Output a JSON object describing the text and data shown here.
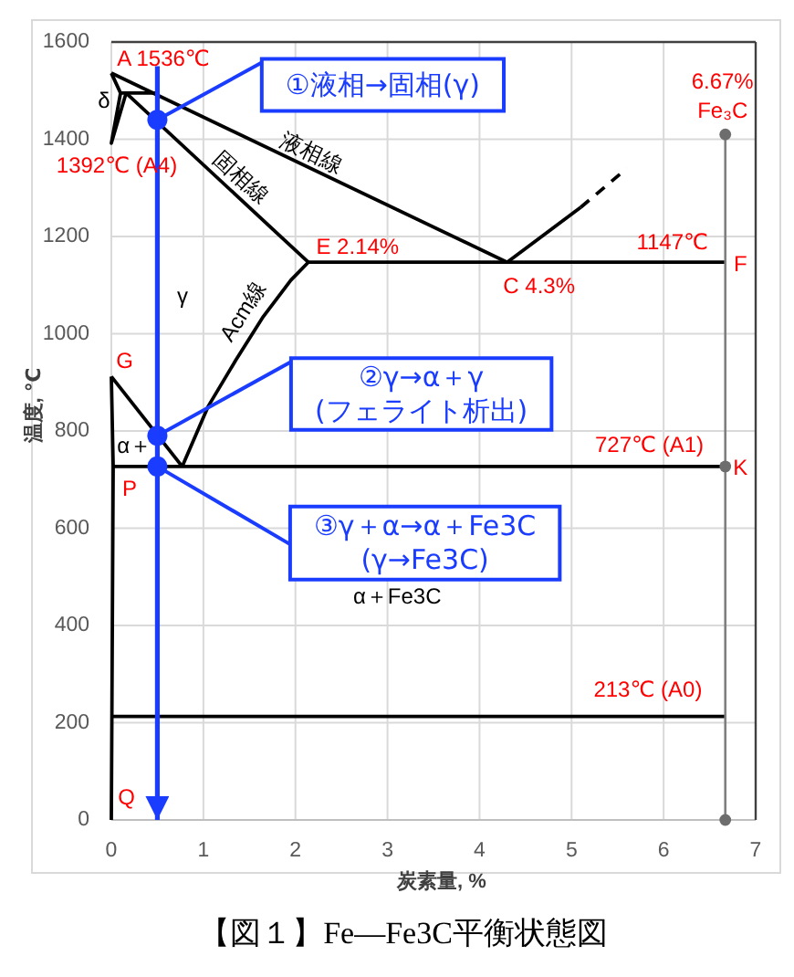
{
  "chart_data": {
    "type": "line",
    "title": "【図１】Fe—Fe3C平衡状態図",
    "xlabel": "炭素量, %",
    "ylabel": "温度, ℃",
    "xlim": [
      0,
      7
    ],
    "ylim": [
      0,
      1600
    ],
    "xticks": [
      0,
      1,
      2,
      3,
      4,
      5,
      6,
      7
    ],
    "yticks": [
      0,
      200,
      400,
      600,
      800,
      1000,
      1200,
      1400,
      1600
    ],
    "grid": true,
    "series": [
      {
        "name": "液相線",
        "color": "#000000",
        "x": [
          0,
          4.3
        ],
        "values": [
          1536,
          1147
        ]
      },
      {
        "name": "固相線",
        "color": "#000000",
        "x": [
          0.16,
          2.14
        ],
        "values": [
          1495,
          1147
        ]
      },
      {
        "color": "#000000",
        "x": [
          0,
          0.1,
          0,
          0.16
        ],
        "values": [
          1536,
          1495,
          1392,
          1495
        ]
      },
      {
        "color": "#000000",
        "x": [
          0.1,
          0.5
        ],
        "values": [
          1495,
          1495
        ]
      },
      {
        "color": "#000000",
        "x": [
          2.14,
          6.67
        ],
        "values": [
          1147,
          1147
        ]
      },
      {
        "color": "#000000",
        "x": [
          4.3,
          5.1
        ],
        "values": [
          1147,
          1260
        ]
      },
      {
        "color": "#000000",
        "x": [
          5.1,
          5.6
        ],
        "values": [
          1260,
          1340
        ],
        "line_style": "dashed"
      },
      {
        "name": "Acm線",
        "color": "#000000",
        "x": [
          0.77,
          1.05,
          1.35,
          1.65,
          1.95,
          2.14
        ],
        "values": [
          727,
          850,
          945,
          1035,
          1110,
          1147
        ]
      },
      {
        "color": "#000000",
        "x": [
          0,
          0.77
        ],
        "values": [
          912,
          727
        ]
      },
      {
        "color": "#000000",
        "x": [
          0,
          0.02,
          0
        ],
        "values": [
          912,
          727,
          0
        ]
      },
      {
        "color": "#000000",
        "x": [
          0.02,
          6.67
        ],
        "values": [
          727,
          727
        ]
      },
      {
        "color": "#000000",
        "x": [
          0,
          6.67
        ],
        "values": [
          213,
          213
        ]
      },
      {
        "color": "#7f7f7f",
        "x": [
          6.67,
          6.67,
          6.67
        ],
        "values": [
          1410,
          727,
          0
        ],
        "marker": "circle"
      },
      {
        "color": "#1a3cff",
        "x": [
          0.5,
          0.5
        ],
        "values": [
          1550,
          0
        ]
      },
      {
        "type": "scatter",
        "color": "#1a3cff",
        "x": [
          0.5,
          0.5,
          0.5
        ],
        "values": [
          1440,
          790,
          727
        ],
        "marker": "circle"
      }
    ],
    "annotations": [
      {
        "text": "A 1536℃",
        "x": 0,
        "y": 1536
      },
      {
        "text": "1392℃ (A4)",
        "x": 0,
        "y": 1392
      },
      {
        "text": "δ",
        "x": 0.05,
        "y": 1470
      },
      {
        "text": "E 2.14%",
        "x": 2.14,
        "y": 1147
      },
      {
        "text": "C 4.3%",
        "x": 4.3,
        "y": 1147
      },
      {
        "text": "1147℃",
        "x": 6.67,
        "y": 1147
      },
      {
        "text": "F",
        "x": 6.67,
        "y": 1147
      },
      {
        "text": "6.67%\nFe₃C",
        "x": 6.67,
        "y": 1410
      },
      "γ",
      {
        "text": "G",
        "x": 0,
        "y": 912
      },
      "α＋",
      {
        "text": "P",
        "x": 0.02,
        "y": 727
      },
      {
        "text": "727℃ (A1)",
        "x": 6.67,
        "y": 727
      },
      {
        "text": "K",
        "x": 6.67,
        "y": 727
      },
      "α＋Fe3C",
      {
        "text": "213℃ (A0)",
        "x": 6.67,
        "y": 213
      },
      {
        "text": "Q",
        "x": 0,
        "y": 0
      },
      {
        "text": "①液相→固相(γ)",
        "x": 0.5,
        "y": 1440
      },
      {
        "text": "②γ→α＋γ\n(フェライト析出)",
        "x": 0.5,
        "y": 790
      },
      {
        "text": "③γ＋α→α＋Fe3C\n(γ→Fe3C)",
        "x": 0.5,
        "y": 727
      }
    ]
  }
}
